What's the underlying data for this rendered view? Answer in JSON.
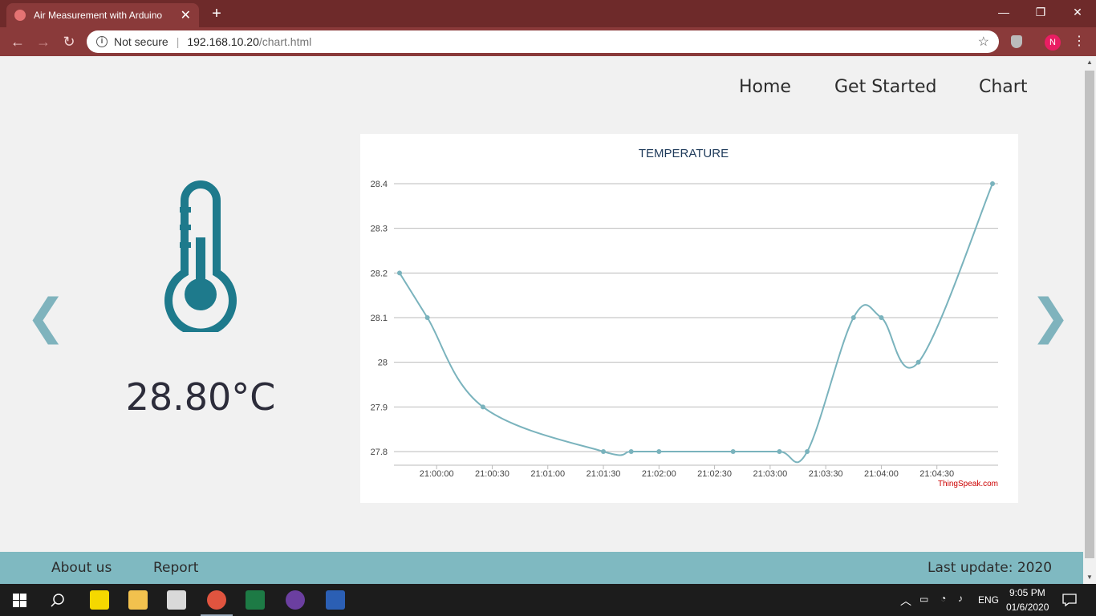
{
  "browser": {
    "tab_title": "Air Measurement with Arduino",
    "security": "Not secure",
    "url_host": "192.168.10.20",
    "url_path": "/chart.html",
    "profile_initial": "N"
  },
  "nav": {
    "items": [
      "Home",
      "Get Started",
      "Chart"
    ]
  },
  "sensor": {
    "temperature": "28.80°C",
    "prev_arrow": "❮",
    "next_arrow": "❯"
  },
  "chart_data": {
    "type": "line",
    "title": "TEMPERATURE",
    "x": [
      "20:59:40",
      "20:59:55",
      "21:00:25",
      "21:01:30",
      "21:01:45",
      "21:02:00",
      "21:02:40",
      "21:03:05",
      "21:03:20",
      "21:03:45",
      "21:04:00",
      "21:04:20",
      "21:05:00"
    ],
    "values": [
      28.2,
      28.1,
      27.9,
      27.8,
      27.8,
      27.8,
      27.8,
      27.8,
      27.8,
      28.1,
      28.1,
      28.0,
      28.4
    ],
    "x_tick_labels": [
      "21:00:00",
      "21:00:30",
      "21:01:00",
      "21:01:30",
      "21:02:00",
      "21:02:30",
      "21:03:00",
      "21:03:30",
      "21:04:00",
      "21:04:30"
    ],
    "y_tick_labels": [
      "28.4",
      "28.3",
      "28.2",
      "28.1",
      "28",
      "27.9",
      "27.8"
    ],
    "ylim": [
      27.8,
      28.4
    ],
    "line_color": "#7ab3bd",
    "grid": true,
    "credit": "ThingSpeak.com"
  },
  "footer": {
    "about": "About us",
    "report": "Report",
    "last_update": "Last update: 2020"
  },
  "taskbar": {
    "language": "ENG",
    "time": "9:05 PM",
    "date": "01/6/2020"
  },
  "colors": {
    "accent": "#7fb9c1",
    "thermometer": "#1e7a8c"
  }
}
